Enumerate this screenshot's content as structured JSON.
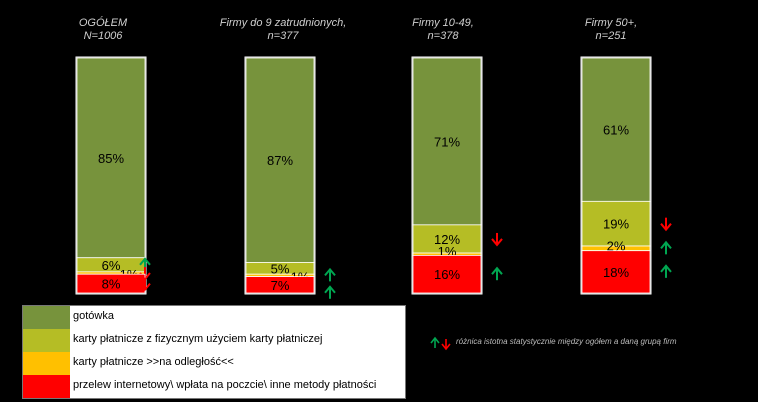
{
  "chart_data": {
    "type": "bar",
    "stacked": true,
    "categories": [
      {
        "line1": "OGÓŁEM",
        "line2": "N=1006"
      },
      {
        "line1": "Firmy do 9 zatrudnionych,",
        "line2": "n=377"
      },
      {
        "line1": "Firmy 10-49,",
        "line2": "n=378"
      },
      {
        "line1": "Firmy 50+,",
        "line2": "n=251"
      }
    ],
    "series": [
      {
        "name": "gotówka",
        "color": "#77933c",
        "values": [
          85,
          87,
          71,
          61
        ],
        "labels": [
          "85%",
          "87%",
          "71%",
          "61%"
        ]
      },
      {
        "name": "karty płatnicze z fizycznym użyciem karty płatniczej",
        "color": "#b5bd25",
        "values": [
          6,
          5,
          12,
          19
        ],
        "labels": [
          "6%",
          "5%",
          "12%",
          "19%"
        ]
      },
      {
        "name": "karty płatnicze >>na odległość<<",
        "color": "#ffc000",
        "values": [
          1,
          1,
          1,
          2
        ],
        "labels": [
          "1%",
          "1%",
          "1%",
          "2%"
        ]
      },
      {
        "name": "przelew internetowy\\ wpłata na poczcie\\ inne metody płatności",
        "color": "#ff0000",
        "values": [
          8,
          7,
          16,
          18
        ],
        "labels": [
          "8%",
          "7%",
          "16%",
          "18%"
        ]
      }
    ],
    "arrows": [
      [
        null,
        null,
        null,
        null
      ],
      [
        "up",
        null,
        "down",
        "down"
      ],
      [
        "down",
        "up",
        null,
        "up"
      ],
      [
        "down",
        "up",
        "up",
        "up"
      ]
    ],
    "ylim": [
      0,
      100
    ],
    "legend": "bottom-left"
  },
  "legend_note": "różnica istotna statystycznie między ogółem a daną grupą firm",
  "colors": {
    "up": "#00a651",
    "down": "#ff0000"
  }
}
